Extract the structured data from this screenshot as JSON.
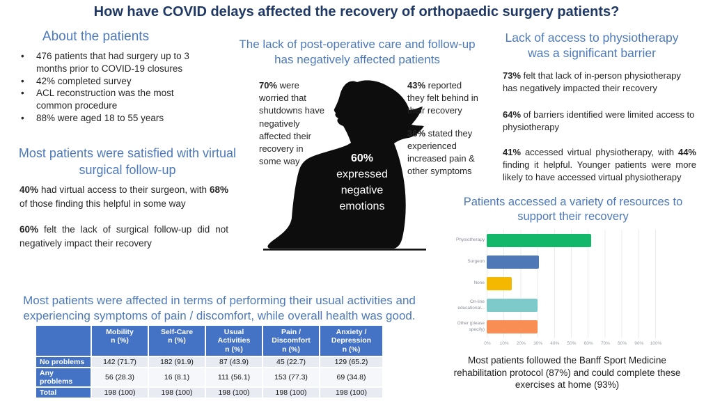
{
  "title": "How have COVID delays affected the recovery of orthopaedic surgery patients?",
  "colors": {
    "title_navy": "#1f3864",
    "heading_blue": "#4d79b8",
    "table_header_blue": "#4472c4",
    "band_row": "#e9ebf3",
    "silhouette_black": "#0d0d0d"
  },
  "about": {
    "heading": "About the patients",
    "bullets": [
      "476 patients that had surgery up to 3 months prior to COVID-19 closures",
      "42% completed survey",
      "ACL reconstruction was the most common procedure",
      "88% were aged 18 to 55 years"
    ]
  },
  "virtual_followup": {
    "heading": "Most patients were satisfied with virtual surgical follow-up",
    "paragraphs": [
      [
        {
          "t": "40%",
          "b": true
        },
        {
          "t": " had virtual access to their surgeon, with "
        },
        {
          "t": "68%",
          "b": true
        },
        {
          "t": " of those finding this helpful in some way"
        }
      ],
      [
        {
          "t": "60%",
          "b": true
        },
        {
          "t": " felt the lack of surgical follow-up did not negatively impact their recovery"
        }
      ]
    ]
  },
  "post_op": {
    "heading": "The lack of post-operative care and follow-up has negatively affected patients",
    "left_stat": [
      {
        "t": "70%",
        "b": true
      },
      {
        "t": " were worried that shutdowns have negatively affected their recovery in some way"
      }
    ],
    "right_stats": [
      [
        {
          "t": "43%",
          "b": true
        },
        {
          "t": " reported they felt behind in their recovery"
        }
      ],
      [
        {
          "t": "36%",
          "b": true
        },
        {
          "t": " stated they experienced increased pain & other symptoms"
        }
      ]
    ],
    "caption_lines": [
      "60%",
      "expressed",
      "negative",
      "emotions"
    ]
  },
  "physio": {
    "heading": "Lack of access to physiotherapy was a significant barrier",
    "paragraphs": [
      [
        {
          "t": "73%",
          "b": true
        },
        {
          "t": " felt that lack of in-person physiotherapy has negatively impacted their recovery"
        }
      ],
      [
        {
          "t": "64%",
          "b": true
        },
        {
          "t": " of barriers identified were limited access to physiotherapy"
        }
      ],
      [
        {
          "t": "41%",
          "b": true
        },
        {
          "t": " accessed virtual physiotherapy, with "
        },
        {
          "t": "44%",
          "b": true
        },
        {
          "t": " finding it helpful. Younger patients were more likely to have accessed virtual physiotherapy"
        }
      ]
    ]
  },
  "resources": {
    "heading": "Patients accessed a variety of resources to support their recovery",
    "chart_data": {
      "type": "bar",
      "orientation": "horizontal",
      "title": "Patients accessed a variety of resources to support their recovery",
      "categories": [
        "Physiotherapy",
        "Surgeon",
        "None",
        "On-line educational...",
        "Other (please specify)"
      ],
      "values": [
        62,
        31,
        15,
        30,
        30
      ],
      "colors": [
        "#12b76a",
        "#4e79b6",
        "#f5b800",
        "#7ecaca",
        "#f98e55"
      ],
      "xticks": [
        "0%",
        "10%",
        "20%",
        "30%",
        "40%",
        "50%",
        "60%",
        "70%",
        "80%",
        "90%",
        "100%"
      ],
      "xlim": [
        0,
        100
      ],
      "grid": true,
      "legend": false
    },
    "footnote": "Most patients followed the Banff Sport Medicine rehabilitation protocol (87%) and could complete these exercises at home (93%)"
  },
  "outcomes": {
    "heading": "Most patients were affected in terms of performing their usual activities and experiencing symptoms of pain / discomfort, while overall health was good.",
    "table": {
      "columns": [
        "Mobility\nn (%)",
        "Self-Care\nn (%)",
        "Usual\nActivities\nn (%)",
        "Pain /\nDiscomfort\nn (%)",
        "Anxiety /\nDepression\nn (%)"
      ],
      "rows": [
        {
          "label": "No problems",
          "values": [
            "142 (71.7)",
            "182 (91.9)",
            "87 (43.9)",
            "45 (22.7)",
            "129 (65.2)"
          ]
        },
        {
          "label": "Any problems",
          "values": [
            "56 (28.3)",
            "16 (8.1)",
            "111 (56.1)",
            "153 (77.3)",
            "69 (34.8)"
          ]
        },
        {
          "label": "Total",
          "values": [
            "198 (100)",
            "198 (100)",
            "198 (100)",
            "198 (100)",
            "198 (100)"
          ]
        }
      ]
    }
  }
}
